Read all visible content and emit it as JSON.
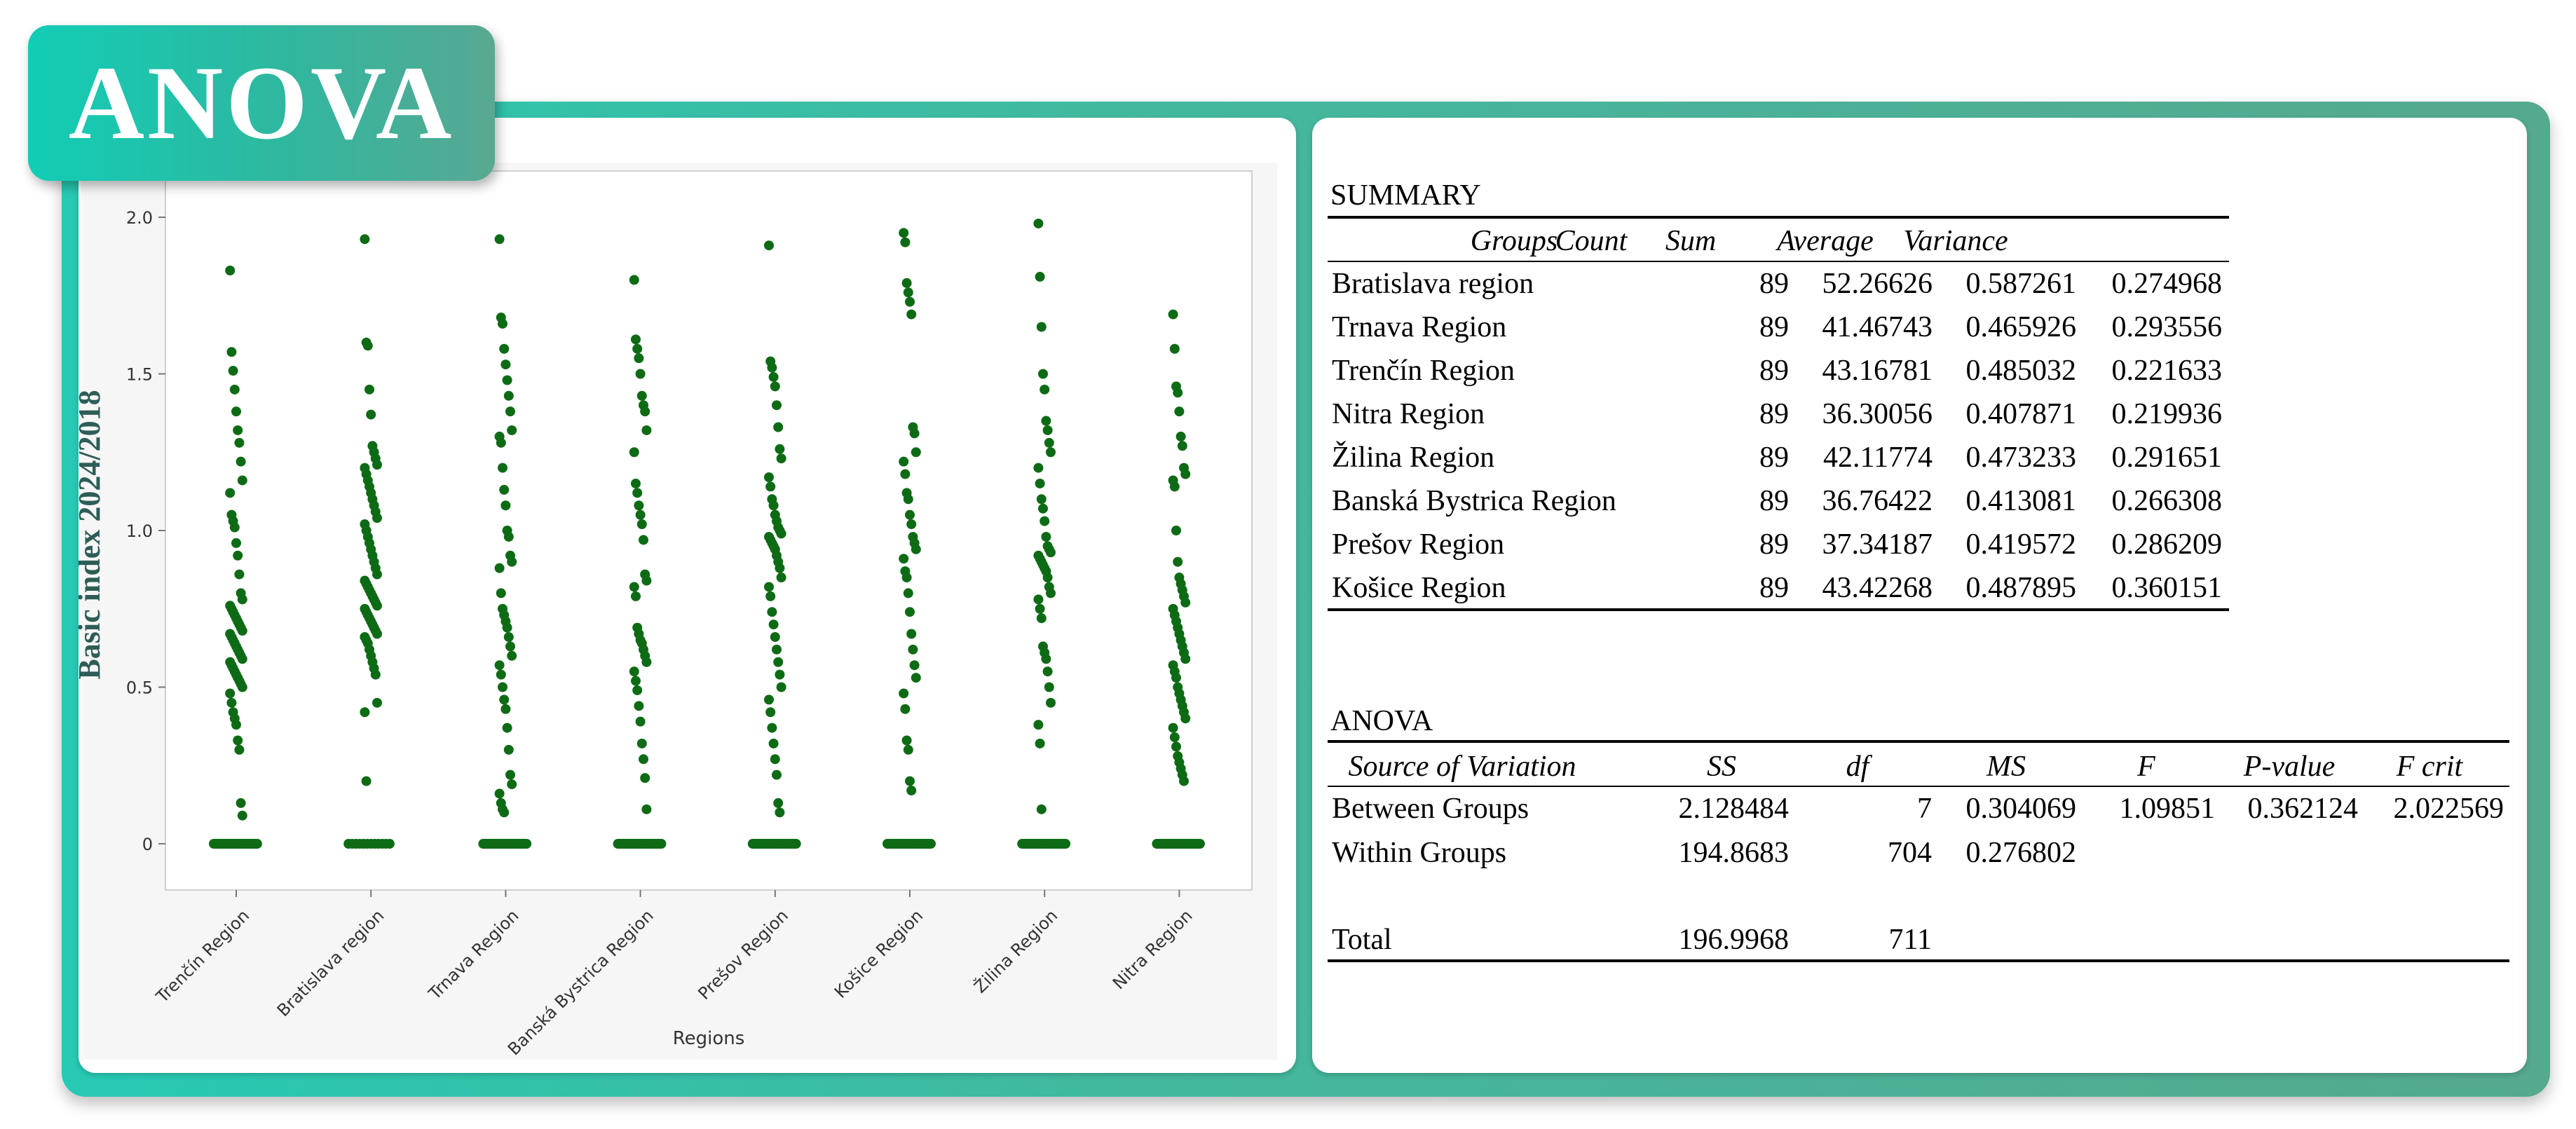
{
  "badge": {
    "title": "ANOVA"
  },
  "colors": {
    "dot": "#0e6b15",
    "frame": "#3fbaa0",
    "badge": "#1fc3ac"
  },
  "chart_data": {
    "type": "scatter",
    "xlabel": "Regions",
    "ylabel": "Basic index 2024/2018",
    "ylim": [
      0,
      2.0
    ],
    "yticks": [
      "0",
      "0.5",
      "1.0",
      "1.5",
      "2.0"
    ],
    "categories": [
      "Trenčín Region",
      "Bratislava region",
      "Trnava Region",
      "Banská Bystrica Region",
      "Prešov Region",
      "Košice Region",
      "Žilina Region",
      "Nitra Region"
    ],
    "groups": [
      {
        "category": "Trenčín Region",
        "zero_count": 30,
        "values": [
          1.83,
          1.57,
          1.51,
          1.45,
          1.38,
          1.32,
          1.28,
          1.22,
          1.16,
          1.12,
          1.05,
          1.03,
          1.01,
          0.96,
          0.92,
          0.86,
          0.8,
          0.78,
          0.76,
          0.75,
          0.74,
          0.73,
          0.72,
          0.71,
          0.7,
          0.69,
          0.68,
          0.67,
          0.66,
          0.65,
          0.64,
          0.63,
          0.62,
          0.61,
          0.6,
          0.59,
          0.58,
          0.57,
          0.56,
          0.55,
          0.54,
          0.53,
          0.52,
          0.51,
          0.5,
          0.48,
          0.45,
          0.42,
          0.4,
          0.38,
          0.33,
          0.3,
          0.13,
          0.09
        ]
      },
      {
        "category": "Bratislava region",
        "zero_count": 12,
        "values": [
          1.93,
          1.6,
          1.59,
          1.45,
          1.37,
          1.27,
          1.25,
          1.23,
          1.21,
          1.2,
          1.18,
          1.16,
          1.14,
          1.12,
          1.1,
          1.08,
          1.06,
          1.04,
          1.02,
          1.0,
          0.98,
          0.96,
          0.94,
          0.92,
          0.9,
          0.88,
          0.86,
          0.84,
          0.83,
          0.82,
          0.81,
          0.8,
          0.79,
          0.78,
          0.77,
          0.76,
          0.75,
          0.74,
          0.73,
          0.72,
          0.71,
          0.7,
          0.69,
          0.68,
          0.67,
          0.66,
          0.65,
          0.64,
          0.62,
          0.6,
          0.58,
          0.56,
          0.54,
          0.45,
          0.42,
          0.2
        ]
      },
      {
        "category": "Trnava Region",
        "zero_count": 28,
        "values": [
          1.93,
          1.68,
          1.66,
          1.58,
          1.53,
          1.48,
          1.43,
          1.38,
          1.32,
          1.3,
          1.28,
          1.2,
          1.13,
          1.08,
          1.0,
          0.98,
          0.92,
          0.9,
          0.88,
          0.8,
          0.75,
          0.73,
          0.71,
          0.69,
          0.66,
          0.63,
          0.6,
          0.57,
          0.54,
          0.5,
          0.46,
          0.43,
          0.37,
          0.3,
          0.22,
          0.19,
          0.16,
          0.13,
          0.11,
          0.1
        ]
      },
      {
        "category": "Banská Bystrica Region",
        "zero_count": 30,
        "values": [
          1.8,
          1.61,
          1.58,
          1.55,
          1.5,
          1.43,
          1.4,
          1.38,
          1.32,
          1.25,
          1.15,
          1.12,
          1.08,
          1.05,
          1.02,
          0.97,
          0.86,
          0.84,
          0.82,
          0.79,
          0.69,
          0.67,
          0.65,
          0.64,
          0.62,
          0.6,
          0.58,
          0.55,
          0.52,
          0.49,
          0.44,
          0.39,
          0.32,
          0.27,
          0.21,
          0.11
        ]
      },
      {
        "category": "Prešov Region",
        "zero_count": 30,
        "values": [
          1.91,
          1.54,
          1.52,
          1.49,
          1.46,
          1.4,
          1.33,
          1.26,
          1.23,
          1.17,
          1.14,
          1.1,
          1.08,
          1.05,
          1.03,
          1.01,
          1.0,
          0.99,
          0.98,
          0.97,
          0.96,
          0.95,
          0.94,
          0.92,
          0.9,
          0.88,
          0.85,
          0.82,
          0.79,
          0.74,
          0.7,
          0.66,
          0.62,
          0.58,
          0.54,
          0.5,
          0.46,
          0.42,
          0.37,
          0.32,
          0.27,
          0.22,
          0.13,
          0.1
        ]
      },
      {
        "category": "Košice Region",
        "zero_count": 32,
        "values": [
          1.95,
          1.92,
          1.79,
          1.76,
          1.73,
          1.69,
          1.33,
          1.31,
          1.25,
          1.22,
          1.18,
          1.12,
          1.1,
          1.05,
          1.02,
          0.98,
          0.96,
          0.94,
          0.91,
          0.87,
          0.85,
          0.8,
          0.74,
          0.67,
          0.62,
          0.57,
          0.53,
          0.48,
          0.43,
          0.33,
          0.3,
          0.2,
          0.17
        ]
      },
      {
        "category": "Žilina Region",
        "zero_count": 30,
        "values": [
          1.98,
          1.81,
          1.65,
          1.5,
          1.45,
          1.35,
          1.32,
          1.28,
          1.25,
          1.2,
          1.15,
          1.1,
          1.07,
          1.03,
          0.98,
          0.95,
          0.94,
          0.93,
          0.92,
          0.91,
          0.9,
          0.89,
          0.88,
          0.87,
          0.85,
          0.82,
          0.8,
          0.78,
          0.75,
          0.72,
          0.63,
          0.61,
          0.59,
          0.55,
          0.5,
          0.45,
          0.38,
          0.32,
          0.11
        ]
      },
      {
        "category": "Nitra Region",
        "zero_count": 26,
        "values": [
          1.69,
          1.58,
          1.46,
          1.44,
          1.38,
          1.3,
          1.27,
          1.2,
          1.18,
          1.16,
          1.14,
          1.0,
          0.9,
          0.85,
          0.83,
          0.81,
          0.79,
          0.77,
          0.75,
          0.73,
          0.71,
          0.69,
          0.67,
          0.65,
          0.63,
          0.61,
          0.59,
          0.57,
          0.55,
          0.53,
          0.5,
          0.48,
          0.46,
          0.44,
          0.42,
          0.4,
          0.37,
          0.34,
          0.31,
          0.28,
          0.26,
          0.24,
          0.22,
          0.2
        ]
      }
    ]
  },
  "summary": {
    "label": "SUMMARY",
    "headers": [
      "Groups",
      "Count",
      "Sum",
      "Average",
      "Variance"
    ],
    "rows": [
      [
        "Bratislava region",
        "89",
        "52.26626",
        "0.587261",
        "0.274968"
      ],
      [
        "Trnava Region",
        "89",
        "41.46743",
        "0.465926",
        "0.293556"
      ],
      [
        "Trenčín Region",
        "89",
        "43.16781",
        "0.485032",
        "0.221633"
      ],
      [
        "Nitra Region",
        "89",
        "36.30056",
        "0.407871",
        "0.219936"
      ],
      [
        "Žilina Region",
        "89",
        "42.11774",
        "0.473233",
        "0.291651"
      ],
      [
        "Banská Bystrica Region",
        "89",
        "36.76422",
        "0.413081",
        "0.266308"
      ],
      [
        "Prešov Region",
        "89",
        "37.34187",
        "0.419572",
        "0.286209"
      ],
      [
        "Košice Region",
        "89",
        "43.42268",
        "0.487895",
        "0.360151"
      ]
    ]
  },
  "anova": {
    "label": "ANOVA",
    "headers": [
      "Source of Variation",
      "SS",
      "df",
      "MS",
      "F",
      "P-value",
      "F crit"
    ],
    "rows": [
      [
        "Between Groups",
        "2.128484",
        "7",
        "0.304069",
        "1.09851",
        "0.362124",
        "2.022569"
      ],
      [
        "Within Groups",
        "194.8683",
        "704",
        "0.276802",
        "",
        "",
        ""
      ],
      [
        "Total",
        "196.9968",
        "711",
        "",
        "",
        "",
        ""
      ]
    ]
  }
}
